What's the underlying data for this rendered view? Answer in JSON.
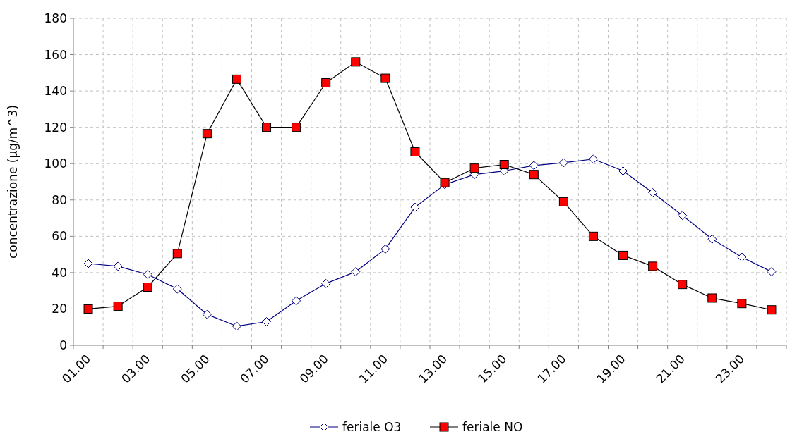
{
  "chart_data": {
    "type": "line",
    "ylabel": "concentrazione (µg/m^3)",
    "categories": [
      "01.00",
      null,
      "03.00",
      null,
      "05.00",
      null,
      "07.00",
      null,
      "09.00",
      null,
      "11.00",
      null,
      "13.00",
      null,
      "15.00",
      null,
      "17.00",
      null,
      "19.00",
      null,
      "21.00",
      null,
      "23.00",
      null
    ],
    "ylim": [
      0,
      180
    ],
    "yticks": [
      0,
      20,
      40,
      60,
      80,
      100,
      120,
      140,
      160,
      180
    ],
    "grid": true,
    "legend": "bottom",
    "line_style": "solid",
    "series": [
      {
        "name": "feriale O3",
        "color": "#000080",
        "marker": "diamond",
        "values": [
          45,
          43.5,
          39,
          31,
          17,
          10.5,
          13,
          24.5,
          34,
          40.5,
          53,
          76,
          88.5,
          94,
          96,
          99,
          100.5,
          102.5,
          96,
          84,
          71.5,
          58.5,
          48.5,
          40.5
        ]
      },
      {
        "name": "feriale NO",
        "color": "#ff0000",
        "marker": "square",
        "values": [
          20,
          21.5,
          32,
          50.5,
          116.5,
          146.5,
          120,
          120,
          144.5,
          156,
          147,
          106.5,
          89.5,
          97.5,
          99.5,
          94,
          79,
          60,
          49.5,
          43.5,
          33.5,
          26,
          23,
          19.5
        ]
      }
    ]
  }
}
